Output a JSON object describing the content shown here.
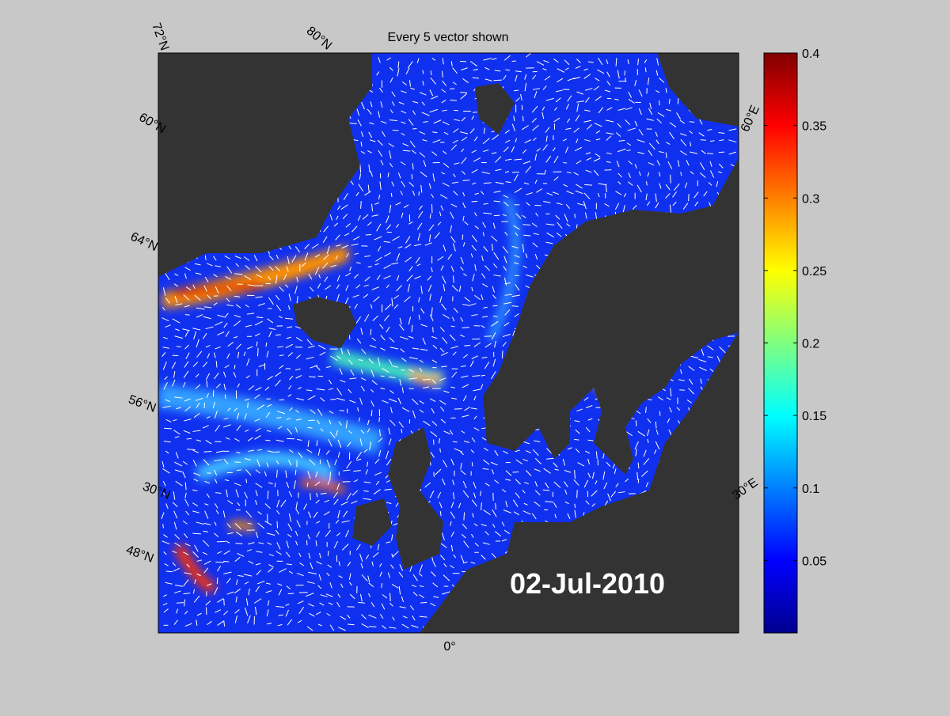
{
  "title": "Every 5 vector shown",
  "date_label": "02-Jul-2010",
  "grid_labels": {
    "top": [
      "72°N",
      "80°N"
    ],
    "left": [
      "60°N",
      "64°N",
      "56°N",
      "30°N",
      "48°N"
    ],
    "right": [
      "60°E",
      "30°E"
    ],
    "bottom": [
      "0°"
    ]
  },
  "colorbar": {
    "lim": [
      0,
      0.4
    ],
    "ticks": [
      0.05,
      0.1,
      0.15,
      0.2,
      0.25,
      0.3,
      0.35,
      0.4
    ]
  }
}
